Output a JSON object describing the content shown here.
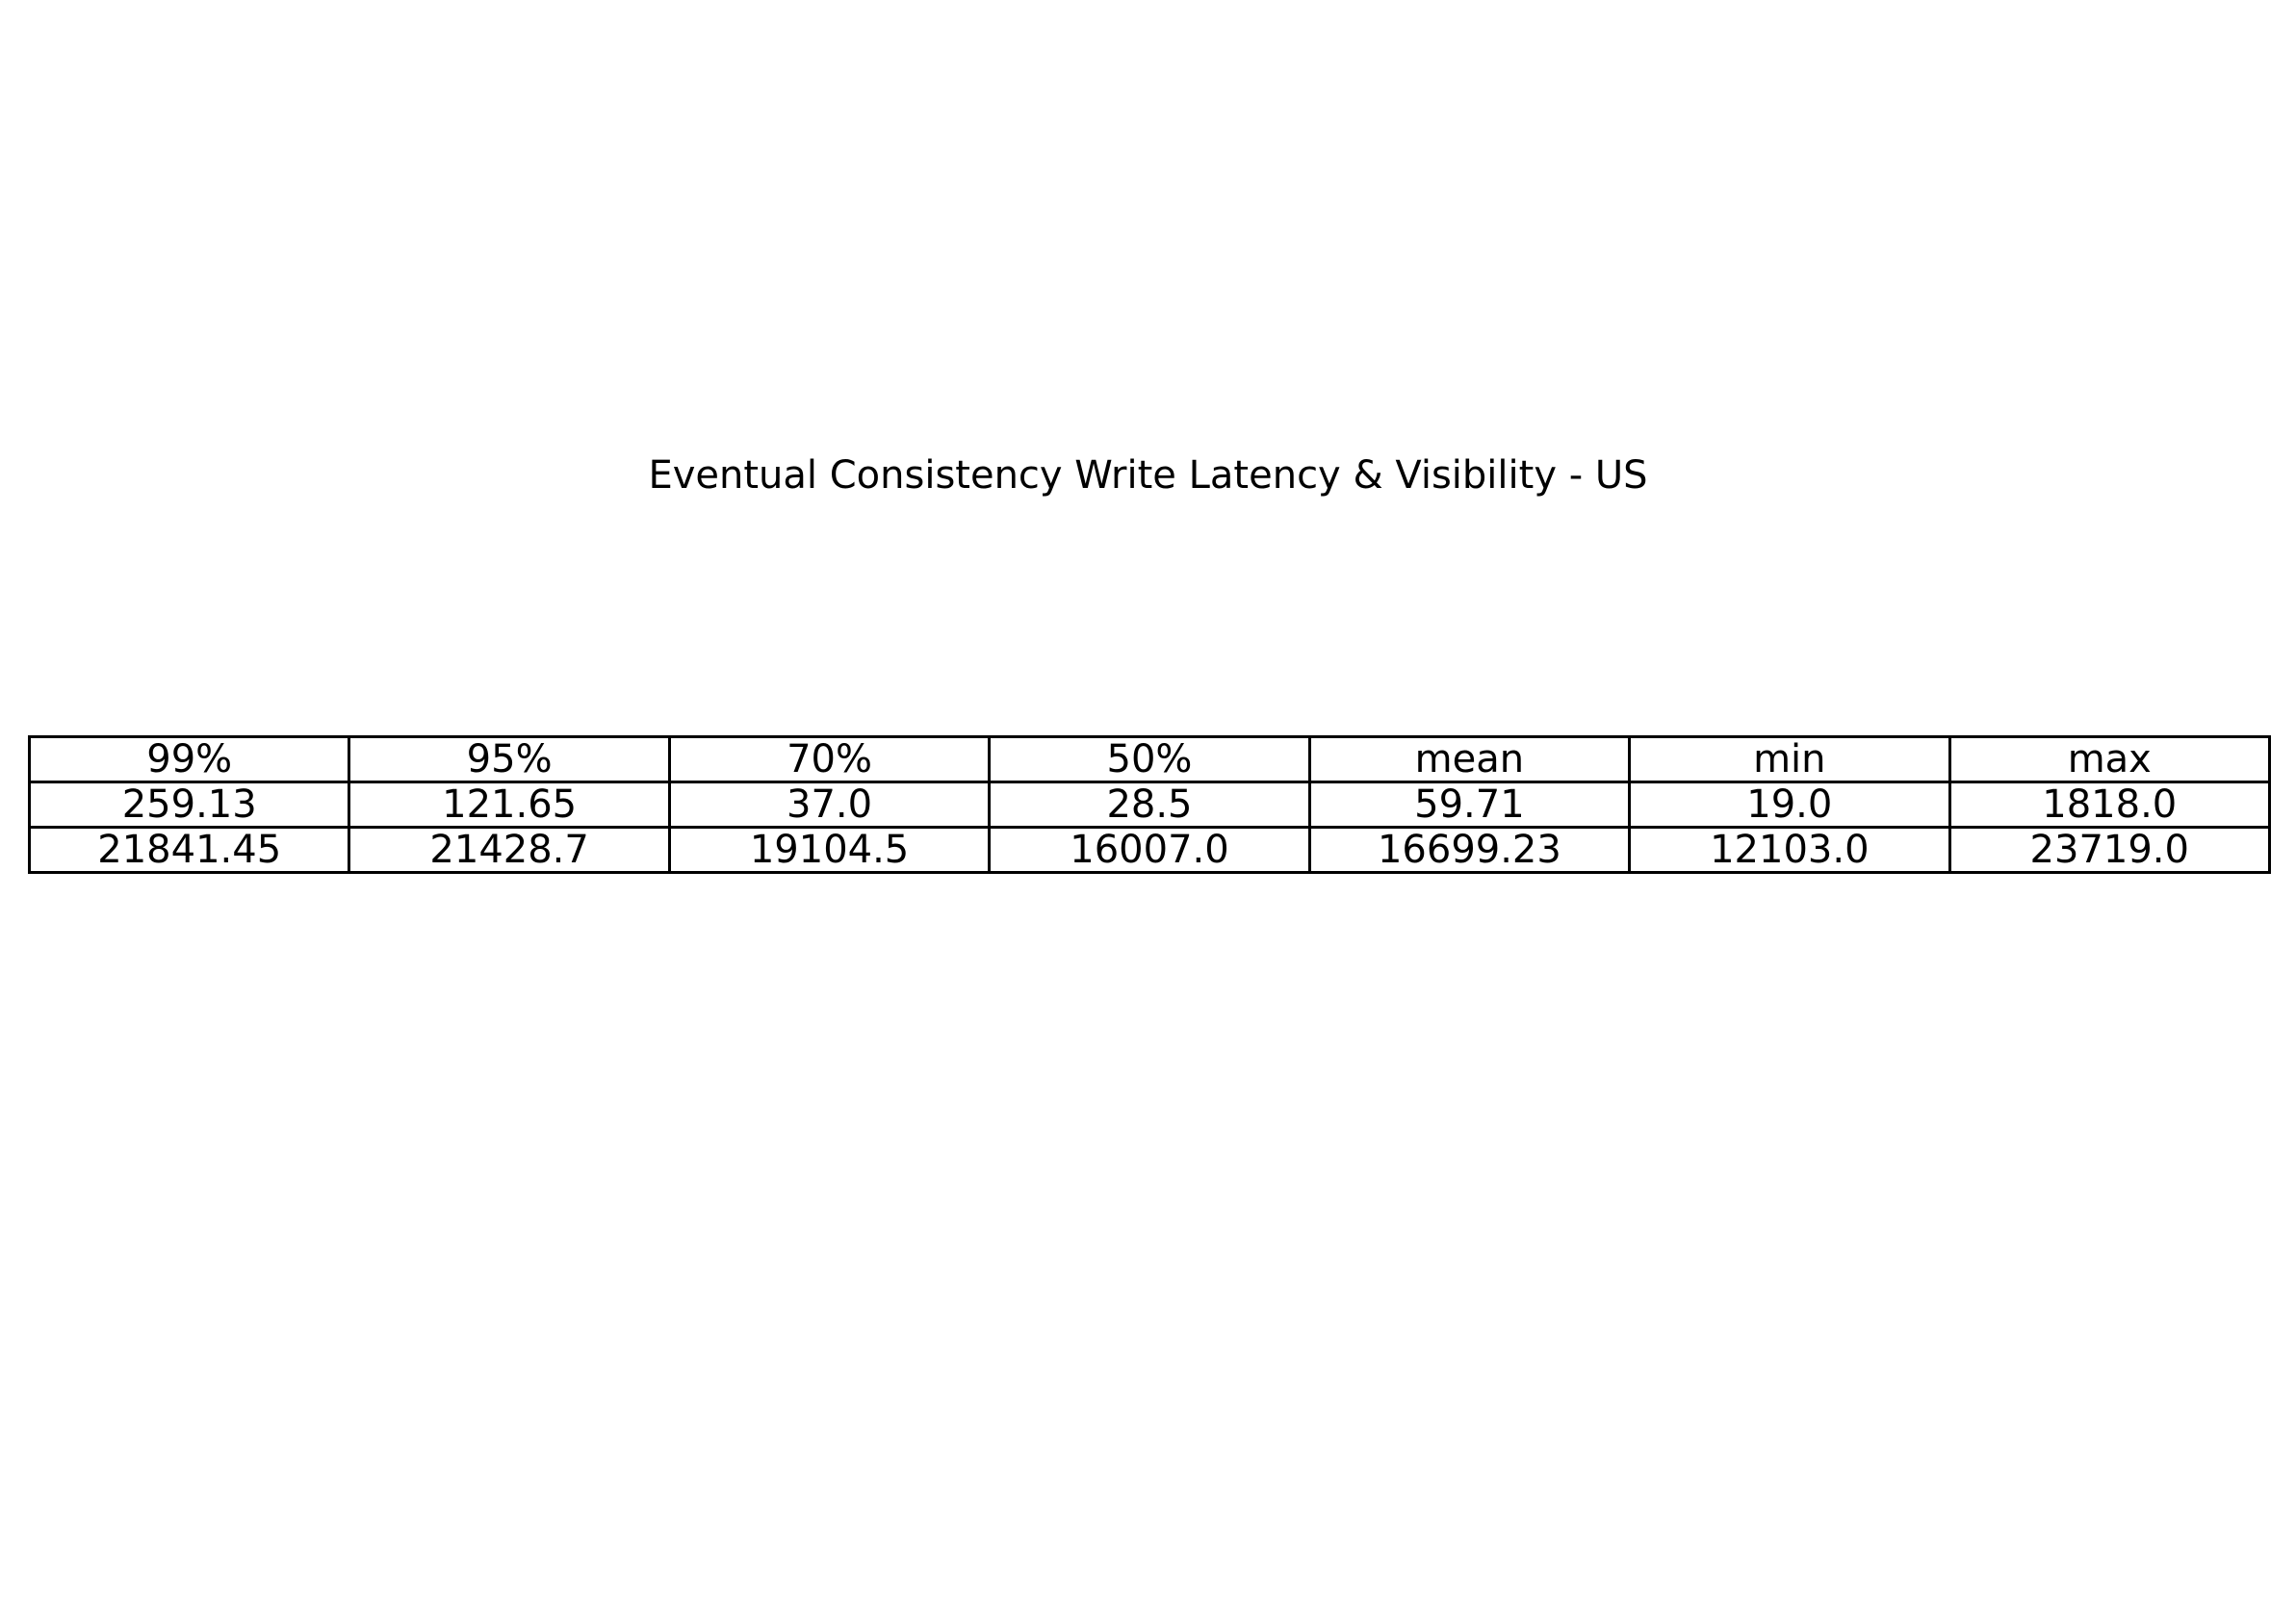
{
  "chart_data": {
    "type": "table",
    "title": "Eventual Consistency Write Latency & Visibility - US",
    "columns": [
      "99%",
      "95%",
      "70%",
      "50%",
      "mean",
      "min",
      "max"
    ],
    "rows": [
      [
        "259.13",
        "121.65",
        "37.0",
        "28.5",
        "59.71",
        "19.0",
        "1818.0"
      ],
      [
        "21841.45",
        "21428.7",
        "19104.5",
        "16007.0",
        "16699.23",
        "12103.0",
        "23719.0"
      ]
    ]
  }
}
